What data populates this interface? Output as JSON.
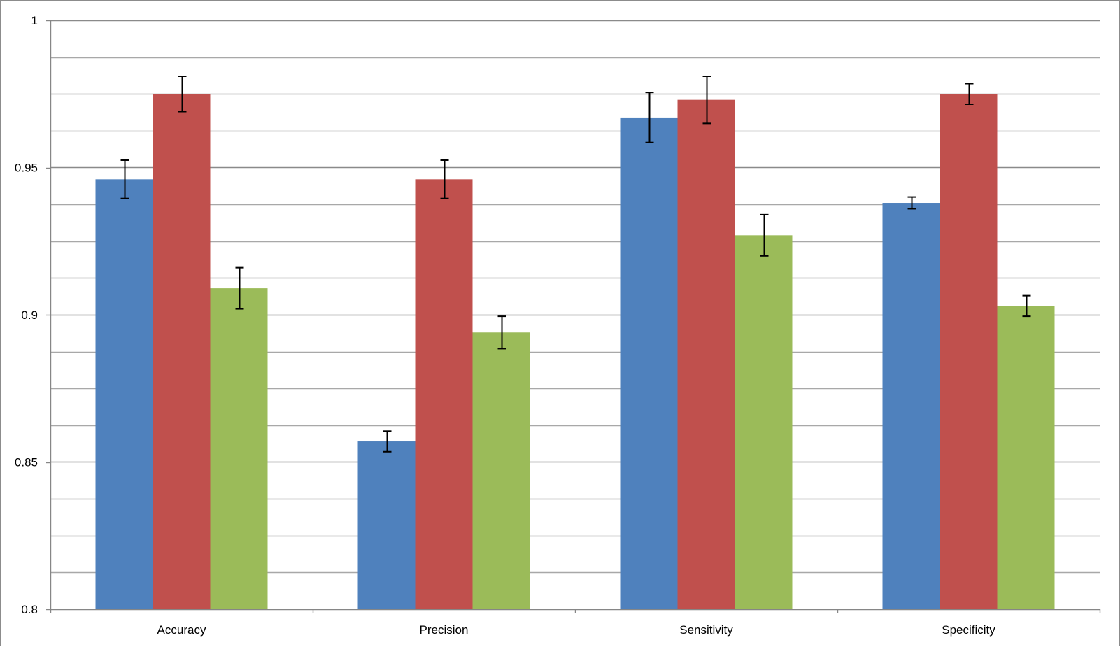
{
  "chart_data": {
    "type": "bar",
    "title": "",
    "xlabel": "",
    "ylabel": "",
    "categories": [
      "Accuracy",
      "Precision",
      "Sensitivity",
      "Specificity"
    ],
    "ylim": [
      0.8,
      1
    ],
    "y_ticks": [
      0.8,
      0.85,
      0.9,
      0.95,
      1
    ],
    "y_tick_labels": [
      "0.8",
      "0.85",
      "0.9",
      "0.95",
      "1"
    ],
    "y_minor_step": 0.0125,
    "grid": true,
    "legend": "none",
    "series": [
      {
        "color": "#4f81bd",
        "values": [
          0.946,
          0.857,
          0.967,
          0.938
        ],
        "errors": [
          0.0065,
          0.0035,
          0.0085,
          0.002
        ]
      },
      {
        "color": "#c0504d",
        "values": [
          0.975,
          0.946,
          0.973,
          0.975
        ],
        "errors": [
          0.006,
          0.0065,
          0.008,
          0.0035
        ]
      },
      {
        "color": "#9bbb59",
        "values": [
          0.909,
          0.894,
          0.927,
          0.903
        ],
        "errors": [
          0.007,
          0.0055,
          0.007,
          0.0035
        ]
      }
    ]
  }
}
